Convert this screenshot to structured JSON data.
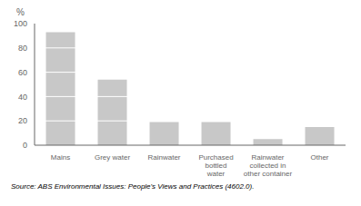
{
  "chart_data": {
    "type": "bar",
    "categories": [
      "Mains",
      "Grey water",
      "Rainwater",
      "Purchased\nbottled\nwater",
      "Rainwater\ncollected in\nother container",
      "Other"
    ],
    "values": [
      93,
      54,
      19,
      19,
      5,
      15
    ],
    "color": "#c8c8c8",
    "ylabel": "%",
    "ylim": [
      0,
      100
    ],
    "yticks": [
      0,
      20,
      40,
      60,
      80,
      100
    ],
    "source": "Source: ABS Environmental Issues: People's Views and Practices (4602.0)."
  }
}
